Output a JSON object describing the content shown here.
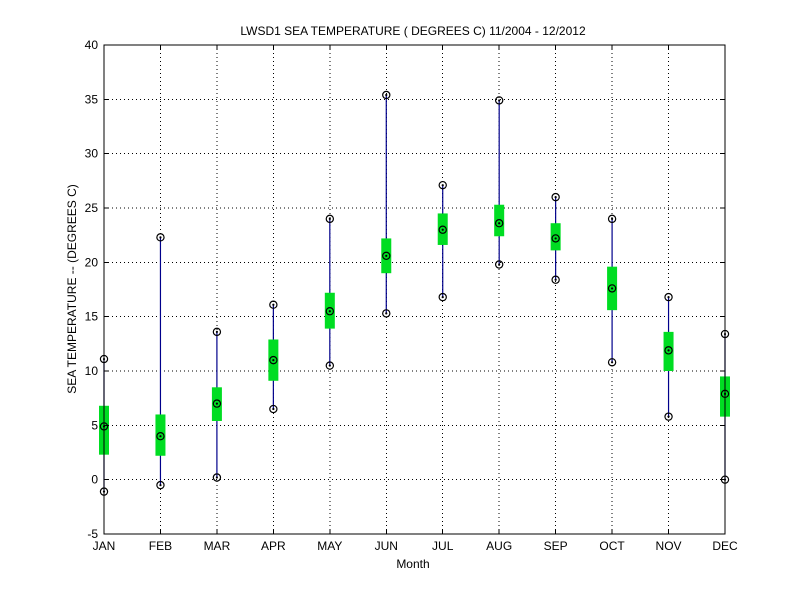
{
  "chart_data": {
    "type": "box",
    "title": "LWSD1  SEA TEMPERATURE ( DEGREES C) 11/2004 - 12/2012",
    "xlabel": "Month",
    "ylabel": "SEA TEMPERATURE -- (DEGREES C)",
    "categories": [
      "JAN",
      "FEB",
      "MAR",
      "APR",
      "MAY",
      "JUN",
      "JUL",
      "AUG",
      "SEP",
      "OCT",
      "NOV",
      "DEC"
    ],
    "ylim": [
      -5,
      40
    ],
    "yticks": [
      -5,
      0,
      5,
      10,
      15,
      20,
      25,
      30,
      35,
      40
    ],
    "ytick_labels": [
      "-5",
      "0",
      "5",
      "10",
      "15",
      "20",
      "25",
      "30",
      "35",
      "40"
    ],
    "grid": true,
    "series": [
      {
        "min": [
          -1.1,
          -0.5,
          0.2,
          6.5,
          10.5,
          15.3,
          16.8,
          19.8,
          18.4,
          10.8,
          5.8,
          0.0
        ],
        "q1": [
          2.3,
          2.2,
          5.4,
          9.1,
          13.9,
          19.0,
          21.6,
          22.4,
          21.1,
          15.6,
          10.0,
          5.8
        ],
        "median": [
          4.9,
          4.0,
          7.0,
          11.0,
          15.5,
          20.6,
          23.0,
          23.6,
          22.2,
          17.6,
          11.9,
          7.9
        ],
        "q3": [
          6.8,
          6.0,
          8.5,
          12.9,
          17.2,
          22.2,
          24.5,
          25.3,
          23.6,
          19.6,
          13.6,
          9.5
        ],
        "max": [
          11.1,
          22.3,
          13.6,
          16.1,
          24.0,
          35.4,
          27.1,
          34.9,
          26.0,
          24.0,
          16.8,
          13.4
        ]
      }
    ],
    "colors": {
      "whisker": "#00008b",
      "box": "#00dd22",
      "marker": "#000000"
    }
  }
}
